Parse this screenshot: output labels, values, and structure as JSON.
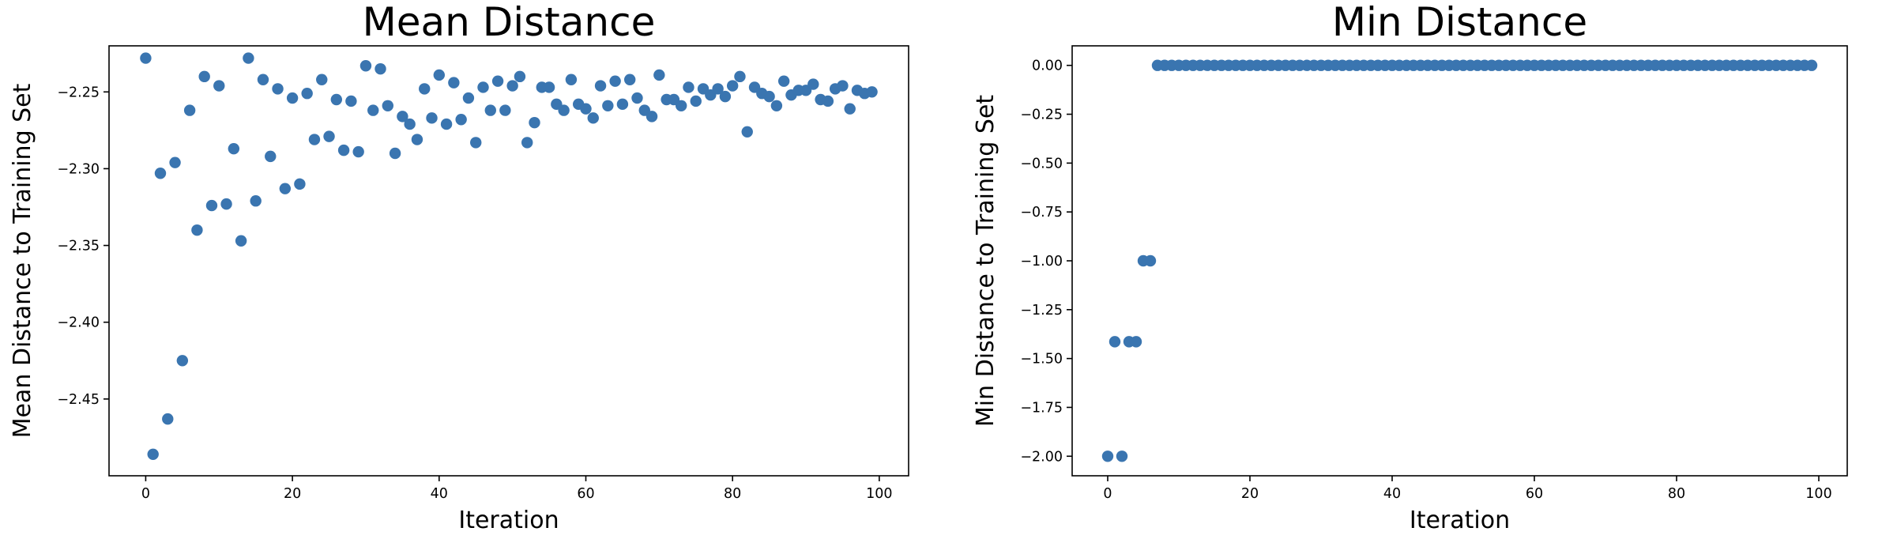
{
  "colors": {
    "marker": "#3a75b0"
  },
  "chart_data": [
    {
      "type": "scatter",
      "title": "Mean Distance",
      "xlabel": "Iteration",
      "ylabel": "Mean Distance to Training Set",
      "xlim": [
        -5,
        104
      ],
      "ylim": [
        -2.5,
        -2.22
      ],
      "xticks": [
        0,
        20,
        40,
        60,
        80,
        100
      ],
      "xtick_labels": [
        "0",
        "20",
        "40",
        "60",
        "80",
        "100"
      ],
      "yticks": [
        -2.25,
        -2.3,
        -2.35,
        -2.4,
        -2.45
      ],
      "ytick_labels": [
        "−2.25",
        "−2.30",
        "−2.35",
        "−2.40",
        "−2.45"
      ],
      "grid": false,
      "x": [
        0,
        1,
        2,
        3,
        4,
        5,
        6,
        7,
        8,
        9,
        10,
        11,
        12,
        13,
        14,
        15,
        16,
        17,
        18,
        19,
        20,
        21,
        22,
        23,
        24,
        25,
        26,
        27,
        28,
        29,
        30,
        31,
        32,
        33,
        34,
        35,
        36,
        37,
        38,
        39,
        40,
        41,
        42,
        43,
        44,
        45,
        46,
        47,
        48,
        49,
        50,
        51,
        52,
        53,
        54,
        55,
        56,
        57,
        58,
        59,
        60,
        61,
        62,
        63,
        64,
        65,
        66,
        67,
        68,
        69,
        70,
        71,
        72,
        73,
        74,
        75,
        76,
        77,
        78,
        79,
        80,
        81,
        82,
        83,
        84,
        85,
        86,
        87,
        88,
        89,
        90,
        91,
        92,
        93,
        94,
        95,
        96,
        97,
        98,
        99
      ],
      "y": [
        -2.228,
        -2.486,
        -2.303,
        -2.463,
        -2.296,
        -2.425,
        -2.262,
        -2.34,
        -2.24,
        -2.324,
        -2.246,
        -2.323,
        -2.287,
        -2.347,
        -2.228,
        -2.321,
        -2.242,
        -2.292,
        -2.248,
        -2.313,
        -2.254,
        -2.31,
        -2.251,
        -2.281,
        -2.242,
        -2.279,
        -2.255,
        -2.288,
        -2.256,
        -2.289,
        -2.233,
        -2.262,
        -2.235,
        -2.259,
        -2.29,
        -2.266,
        -2.271,
        -2.281,
        -2.248,
        -2.267,
        -2.239,
        -2.271,
        -2.244,
        -2.268,
        -2.254,
        -2.283,
        -2.247,
        -2.262,
        -2.243,
        -2.262,
        -2.246,
        -2.24,
        -2.283,
        -2.27,
        -2.247,
        -2.247,
        -2.258,
        -2.262,
        -2.242,
        -2.258,
        -2.261,
        -2.267,
        -2.246,
        -2.259,
        -2.243,
        -2.258,
        -2.242,
        -2.254,
        -2.262,
        -2.266,
        -2.239,
        -2.255,
        -2.255,
        -2.259,
        -2.247,
        -2.256,
        -2.248,
        -2.252,
        -2.248,
        -2.253,
        -2.246,
        -2.24,
        -2.276,
        -2.247,
        -2.251,
        -2.253,
        -2.259,
        -2.243,
        -2.252,
        -2.249,
        -2.249,
        -2.245,
        -2.255,
        -2.256,
        -2.248,
        -2.246,
        -2.261,
        -2.249,
        -2.251,
        -2.25
      ]
    },
    {
      "type": "scatter",
      "title": "Min Distance",
      "xlabel": "Iteration",
      "ylabel": "Min Distance to Training Set",
      "xlim": [
        -5,
        104
      ],
      "ylim": [
        -2.1,
        0.1
      ],
      "xticks": [
        0,
        20,
        40,
        60,
        80,
        100
      ],
      "xtick_labels": [
        "0",
        "20",
        "40",
        "60",
        "80",
        "100"
      ],
      "yticks": [
        0,
        -0.25,
        -0.5,
        -0.75,
        -1.0,
        -1.25,
        -1.5,
        -1.75,
        -2.0
      ],
      "ytick_labels": [
        "0.00",
        "−0.25",
        "−0.50",
        "−0.75",
        "−1.00",
        "−1.25",
        "−1.50",
        "−1.75",
        "−2.00"
      ],
      "grid": false,
      "x": [
        0,
        1,
        2,
        3,
        4,
        5,
        6,
        7,
        8,
        9,
        10,
        11,
        12,
        13,
        14,
        15,
        16,
        17,
        18,
        19,
        20,
        21,
        22,
        23,
        24,
        25,
        26,
        27,
        28,
        29,
        30,
        31,
        32,
        33,
        34,
        35,
        36,
        37,
        38,
        39,
        40,
        41,
        42,
        43,
        44,
        45,
        46,
        47,
        48,
        49,
        50,
        51,
        52,
        53,
        54,
        55,
        56,
        57,
        58,
        59,
        60,
        61,
        62,
        63,
        64,
        65,
        66,
        67,
        68,
        69,
        70,
        71,
        72,
        73,
        74,
        75,
        76,
        77,
        78,
        79,
        80,
        81,
        82,
        83,
        84,
        85,
        86,
        87,
        88,
        89,
        90,
        91,
        92,
        93,
        94,
        95,
        96,
        97,
        98,
        99
      ],
      "y": [
        -2.0,
        -1.414,
        -2.0,
        -1.414,
        -1.414,
        -1.0,
        -1.0,
        0,
        0,
        0,
        0,
        0,
        0,
        0,
        0,
        0,
        0,
        0,
        0,
        0,
        0,
        0,
        0,
        0,
        0,
        0,
        0,
        0,
        0,
        0,
        0,
        0,
        0,
        0,
        0,
        0,
        0,
        0,
        0,
        0,
        0,
        0,
        0,
        0,
        0,
        0,
        0,
        0,
        0,
        0,
        0,
        0,
        0,
        0,
        0,
        0,
        0,
        0,
        0,
        0,
        0,
        0,
        0,
        0,
        0,
        0,
        0,
        0,
        0,
        0,
        0,
        0,
        0,
        0,
        0,
        0,
        0,
        0,
        0,
        0,
        0,
        0,
        0,
        0,
        0,
        0,
        0,
        0,
        0,
        0,
        0,
        0,
        0,
        0,
        0,
        0,
        0,
        0,
        0,
        0
      ]
    }
  ]
}
